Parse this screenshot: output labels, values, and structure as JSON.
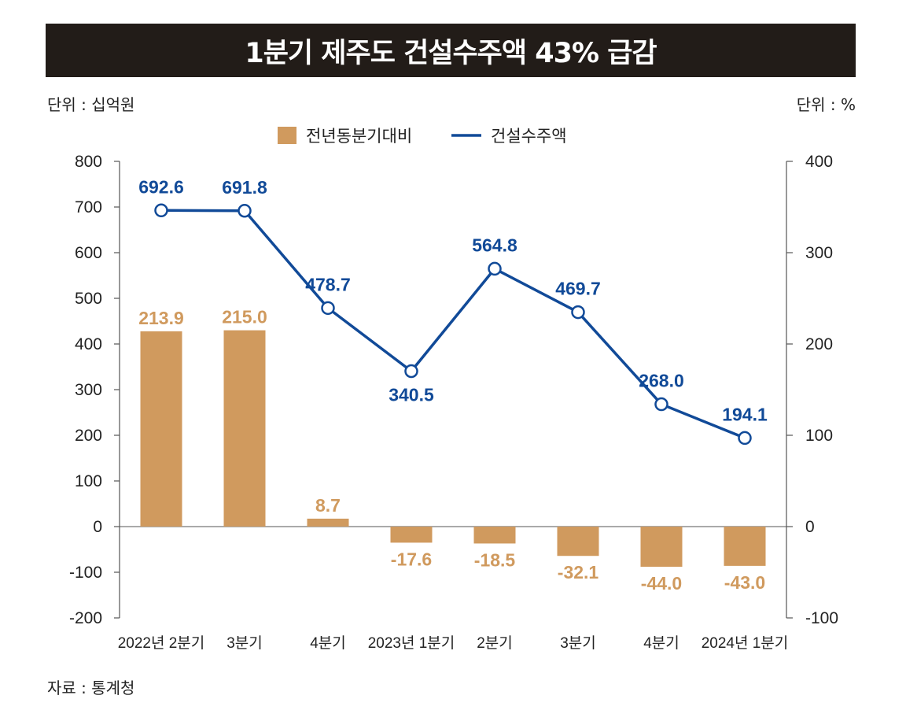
{
  "title": "1분기 제주도 건설수주액 43% 급감",
  "unit_left": "단위 : 십억원",
  "unit_right": "단위 : %",
  "source": "자료 : 통계청",
  "colors": {
    "bar": "#d09a5e",
    "line": "#114a98",
    "bar_label": "#d09a5e",
    "line_label": "#114a98",
    "title_bg": "#221c18"
  },
  "chart_data": {
    "type": "bar+line",
    "categories": [
      "2022년 2분기",
      "3분기",
      "4분기",
      "2023년 1분기",
      "2분기",
      "3분기",
      "4분기",
      "2024년 1분기"
    ],
    "series": [
      {
        "name": "전년동분기대비",
        "type": "bar",
        "axis": "right",
        "values": [
          213.9,
          215.0,
          8.7,
          -17.6,
          -18.5,
          -32.1,
          -44.0,
          -43.0
        ]
      },
      {
        "name": "건설수주액",
        "type": "line",
        "axis": "left",
        "values": [
          692.6,
          691.8,
          478.7,
          340.5,
          564.8,
          469.7,
          268.0,
          194.1
        ]
      }
    ],
    "left_axis": {
      "min": -200,
      "max": 800,
      "step": 100,
      "ticks": [
        "800",
        "700",
        "600",
        "500",
        "400",
        "300",
        "200",
        "100",
        "0",
        "-100",
        "-200"
      ]
    },
    "right_axis": {
      "min": -100,
      "max": 400,
      "step": 100,
      "ticks": [
        "400",
        "300",
        "200",
        "100",
        "0",
        "-100"
      ]
    },
    "bar_labels": [
      "213.9",
      "215.0",
      "8.7",
      "-17.6",
      "-18.5",
      "-32.1",
      "-44.0",
      "-43.0"
    ],
    "line_labels": [
      "692.6",
      "691.8",
      "478.7",
      "340.5",
      "564.8",
      "469.7",
      "268.0",
      "194.1"
    ],
    "legend_position": "top-center",
    "grid": false
  }
}
